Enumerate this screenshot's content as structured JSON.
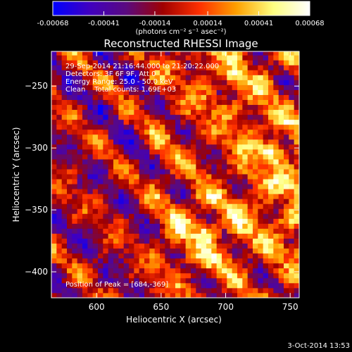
{
  "colorbar": {
    "tick_labels": [
      "-0.00068",
      "-0.00041",
      "-0.00014",
      "0.00014",
      "0.00041",
      "0.00068"
    ],
    "tick_values": [
      -0.00068,
      -0.00041,
      -0.00014,
      0.00014,
      0.00041,
      0.00068
    ],
    "unit_label": "(photons cm⁻² s⁻¹ asec⁻²)",
    "range": [
      -0.00068,
      0.00068
    ],
    "colors": [
      "#0000ff",
      "#4000c0",
      "#5a0a80",
      "#a00000",
      "#ff3000",
      "#ffa000",
      "#ffff80",
      "#ffffff"
    ]
  },
  "chart_data": {
    "type": "heatmap",
    "title": "Reconstructed RHESSI Image",
    "xlabel": "Heliocentric X (arcsec)",
    "ylabel": "Heliocentric Y (arcsec)",
    "xlim": [
      565,
      757
    ],
    "ylim": [
      -421,
      -222
    ],
    "xticks": [
      600,
      650,
      700,
      750
    ],
    "xtick_labels": [
      "600",
      "650",
      "700",
      "750"
    ],
    "yticks": [
      -250,
      -300,
      -350,
      -400
    ],
    "ytick_labels": [
      "−250",
      "−300",
      "−350",
      "−400"
    ],
    "info_lines": [
      "29-Sep-2014 21:16:44.000 to 21:20:22.000",
      "Detectors: 3F 6F 9F, Att 0",
      "Energy Range: 25.0 - 50.0 keV",
      "Clean    Total counts: 1.69E+03"
    ],
    "peak_label": "Position of Peak = [684,-369]",
    "peak_position": [
      684,
      -369
    ],
    "bright_sources": [
      {
        "x": 735,
        "y": -305,
        "intensity": 0.00068
      },
      {
        "x": 684,
        "y": -369,
        "intensity": 0.00068
      },
      {
        "x": 750,
        "y": -360,
        "intensity": 0.0005
      },
      {
        "x": 705,
        "y": -245,
        "intensity": 0.00045
      }
    ],
    "grid": false,
    "colormap": "blue-purple-red-yellow-white"
  },
  "footer": {
    "date": "3-Oct-2014 13:53"
  }
}
